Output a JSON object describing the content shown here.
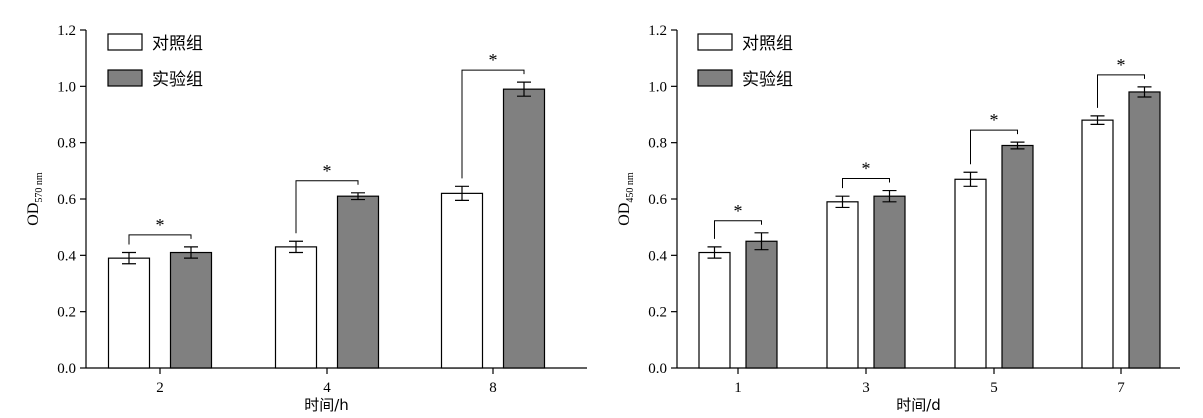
{
  "colors": {
    "control": "#ffffff",
    "experiment": "#808080",
    "axis": "#000000"
  },
  "chart_data": [
    {
      "type": "bar",
      "xlabel": "时间/h",
      "ylabel_main": "OD",
      "ylabel_sub": "570 nm",
      "ylim": [
        0,
        1.2
      ],
      "yticks": [
        "0.0",
        "0.2",
        "0.4",
        "0.6",
        "0.8",
        "1.0",
        "1.2"
      ],
      "categories": [
        "2",
        "4",
        "8"
      ],
      "legend_position": "top-left",
      "series": [
        {
          "name": "对照组",
          "values": [
            0.39,
            0.43,
            0.62
          ],
          "errors": [
            0.02,
            0.02,
            0.025
          ]
        },
        {
          "name": "实验组",
          "values": [
            0.41,
            0.61,
            0.99
          ],
          "errors": [
            0.02,
            0.012,
            0.025
          ]
        }
      ],
      "significance": [
        "*",
        "*",
        "*"
      ]
    },
    {
      "type": "bar",
      "xlabel": "时间/d",
      "ylabel_main": "OD",
      "ylabel_sub": "450 nm",
      "ylim": [
        0,
        1.2
      ],
      "yticks": [
        "0.0",
        "0.2",
        "0.4",
        "0.6",
        "0.8",
        "1.0",
        "1.2"
      ],
      "categories": [
        "1",
        "3",
        "5",
        "7"
      ],
      "legend_position": "top-left",
      "series": [
        {
          "name": "对照组",
          "values": [
            0.41,
            0.59,
            0.67,
            0.88
          ],
          "errors": [
            0.02,
            0.02,
            0.025,
            0.015
          ]
        },
        {
          "name": "实验组",
          "values": [
            0.45,
            0.61,
            0.79,
            0.98
          ],
          "errors": [
            0.03,
            0.02,
            0.012,
            0.018
          ]
        }
      ],
      "significance": [
        "*",
        "*",
        "*",
        "*"
      ]
    }
  ]
}
